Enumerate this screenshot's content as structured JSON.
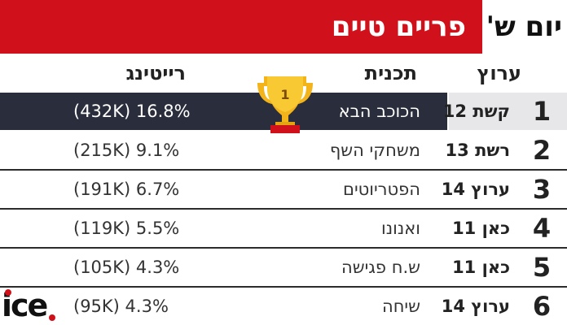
{
  "header": {
    "title": "פריים טיים",
    "day": "יום ש'"
  },
  "columns": {
    "channel": "ערוץ",
    "program": "תכנית",
    "rating": "רייטינג"
  },
  "rows": [
    {
      "rank": "1",
      "channel": "קשת 12",
      "program": "הכוכב הבא",
      "rating": "(432K) 16.8%"
    },
    {
      "rank": "2",
      "channel": "רשת 13",
      "program": "משחקי השף",
      "rating": "(215K) 9.1%"
    },
    {
      "rank": "3",
      "channel": "ערוץ 14",
      "program": "הפטריוטים",
      "rating": "(191K) 6.7%"
    },
    {
      "rank": "4",
      "channel": "כאן 11",
      "program": "ואנונו",
      "rating": "(119K) 5.5%"
    },
    {
      "rank": "5",
      "channel": "כאן 11",
      "program": "ש.ח פגישה",
      "rating": "(105K) 4.3%"
    },
    {
      "rank": "6",
      "channel": "ערוץ 14",
      "program": "שיחה",
      "rating": "(95K) 4.3%"
    }
  ],
  "chart_data": {
    "type": "table",
    "columns": [
      "ערוץ",
      "תכנית",
      "רייטינג"
    ],
    "rows": [
      {
        "rank": 1,
        "channel": "קשת 12",
        "program": "הכוכב הבא",
        "rating_pct": 16.8,
        "viewers_k": 432
      },
      {
        "rank": 2,
        "channel": "רשת 13",
        "program": "משחקי השף",
        "rating_pct": 9.1,
        "viewers_k": 215
      },
      {
        "rank": 3,
        "channel": "ערוץ 14",
        "program": "הפטריוטים",
        "rating_pct": 6.7,
        "viewers_k": 191
      },
      {
        "rank": 4,
        "channel": "כאן 11",
        "program": "ואנונו",
        "rating_pct": 5.5,
        "viewers_k": 119
      },
      {
        "rank": 5,
        "channel": "כאן 11",
        "program": "ש.ח פגישה",
        "rating_pct": 4.3,
        "viewers_k": 105
      },
      {
        "rank": 6,
        "channel": "ערוץ 14",
        "program": "שיחה",
        "rating_pct": 4.3,
        "viewers_k": 95
      }
    ]
  },
  "trophy": {
    "label": "1",
    "icon": "trophy-icon"
  },
  "logo": {
    "text": "ice"
  },
  "colors": {
    "accent": "#d0111b",
    "highlight_row": "#2a2d3b",
    "trophy_gold": "#f2b31b"
  }
}
